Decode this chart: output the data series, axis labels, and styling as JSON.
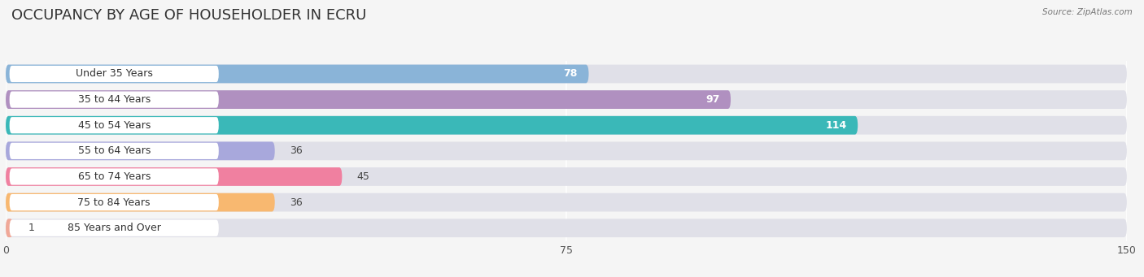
{
  "title": "OCCUPANCY BY AGE OF HOUSEHOLDER IN ECRU",
  "source": "Source: ZipAtlas.com",
  "categories": [
    "Under 35 Years",
    "35 to 44 Years",
    "45 to 54 Years",
    "55 to 64 Years",
    "65 to 74 Years",
    "75 to 84 Years",
    "85 Years and Over"
  ],
  "values": [
    78,
    97,
    114,
    36,
    45,
    36,
    1
  ],
  "bar_colors": [
    "#8ab4d8",
    "#b090c0",
    "#3ab8b8",
    "#a8a8dc",
    "#f080a0",
    "#f8b870",
    "#f0a898"
  ],
  "xlim": [
    0,
    150
  ],
  "xticks": [
    0,
    75,
    150
  ],
  "background_color": "#f5f5f5",
  "bar_background_color": "#e0e0e8",
  "bar_row_bg": "#ebebef",
  "title_fontsize": 13,
  "label_fontsize": 9,
  "value_fontsize": 9
}
